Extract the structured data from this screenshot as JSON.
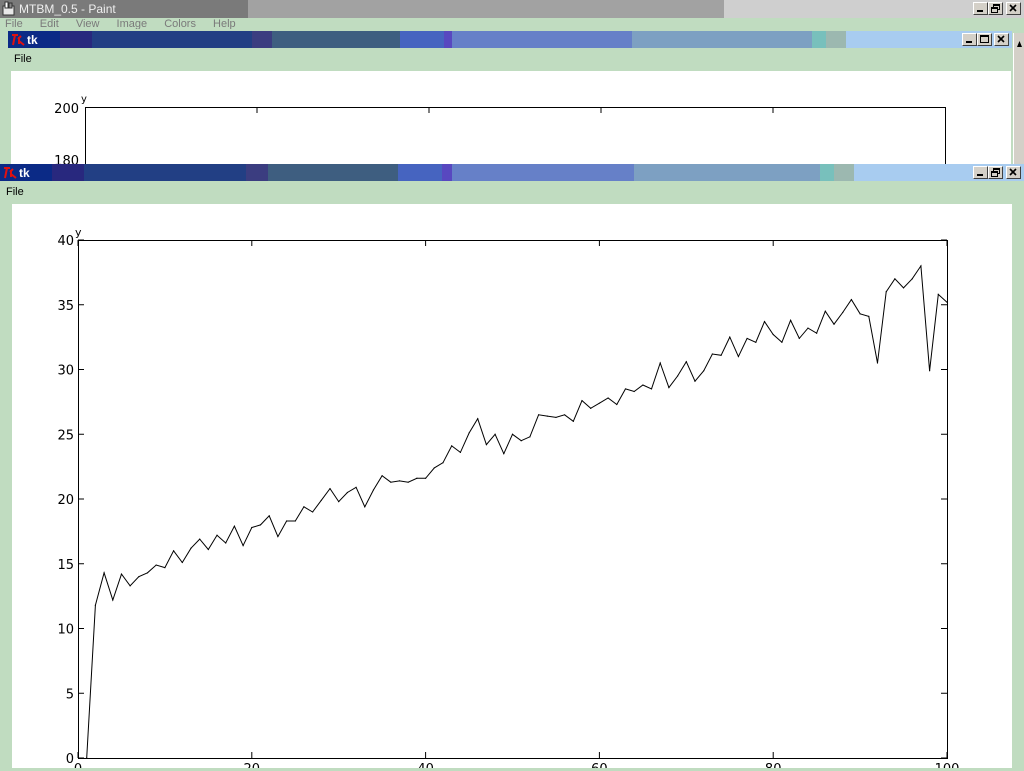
{
  "paint_window": {
    "title": "MTBM_0.5 - Paint",
    "menu": [
      "File",
      "Edit",
      "View",
      "Image",
      "Colors",
      "Help"
    ]
  },
  "tk_window_1": {
    "title": "tk",
    "menu_file": "File",
    "y_axis_label": "y",
    "y_ticks": [
      "200",
      "180"
    ]
  },
  "tk_window_2": {
    "title": "tk",
    "menu_file": "File"
  },
  "icons": {
    "minimize": "minimize-icon",
    "maximize": "maximize-icon",
    "restore": "restore-icon",
    "close": "close-icon",
    "tk_logo": "tk-feather-icon",
    "paint_logo": "paint-app-icon"
  },
  "chart_data": {
    "type": "line",
    "xlabel": "",
    "ylabel": "y",
    "xlim": [
      0,
      100
    ],
    "ylim": [
      0,
      40
    ],
    "x_ticks": [
      "0",
      "20",
      "40",
      "60",
      "80",
      "100"
    ],
    "y_ticks": [
      "0",
      "5",
      "10",
      "15",
      "20",
      "25",
      "30",
      "35",
      "40"
    ],
    "grid": false,
    "series": [
      {
        "color": "#000000",
        "x": [
          1,
          2,
          3,
          4,
          5,
          6,
          7,
          8,
          9,
          10,
          11,
          12,
          13,
          14,
          15,
          16,
          17,
          18,
          19,
          20,
          21,
          22,
          23,
          24,
          25,
          26,
          27,
          28,
          29,
          30,
          31,
          32,
          33,
          34,
          35,
          36,
          37,
          38,
          39,
          40,
          41,
          42,
          43,
          44,
          45,
          46,
          47,
          48,
          49,
          50,
          51,
          52,
          53,
          54,
          55,
          56,
          57,
          58,
          59,
          60,
          61,
          62,
          63,
          64,
          65,
          66,
          67,
          68,
          69,
          70,
          71,
          72,
          73,
          74,
          75,
          76,
          77,
          78,
          79,
          80,
          81,
          82,
          83,
          84,
          85,
          86,
          87,
          88,
          89,
          90,
          91,
          92,
          93,
          94,
          95,
          96,
          97,
          98,
          99,
          100
        ],
        "values": [
          0,
          11.8,
          14.3,
          12.2,
          14.2,
          13.3,
          14.0,
          14.3,
          14.9,
          14.7,
          16.0,
          15.1,
          16.2,
          16.9,
          16.1,
          17.2,
          16.6,
          17.9,
          16.4,
          17.8,
          18.0,
          18.7,
          17.1,
          18.3,
          18.3,
          19.4,
          19.0,
          19.9,
          20.8,
          19.8,
          20.5,
          20.9,
          19.4,
          20.7,
          21.8,
          21.3,
          21.4,
          21.3,
          21.6,
          21.6,
          22.4,
          22.8,
          24.1,
          23.6,
          25.1,
          26.2,
          24.2,
          25.0,
          23.5,
          25.0,
          24.5,
          24.8,
          26.5,
          26.4,
          26.3,
          26.5,
          26.0,
          27.6,
          27.0,
          27.4,
          27.8,
          27.3,
          28.5,
          28.3,
          28.8,
          28.5,
          30.5,
          28.6,
          29.5,
          30.6,
          29.1,
          29.9,
          31.2,
          31.1,
          32.5,
          31.0,
          32.4,
          32.1,
          33.7,
          32.7,
          32.1,
          33.8,
          32.4,
          33.2,
          32.8,
          34.5,
          33.5,
          34.4,
          35.4,
          34.3,
          34.1,
          30.5,
          36.0,
          37.0,
          36.3,
          37.0,
          38.0,
          29.9,
          35.8,
          35.2
        ]
      }
    ]
  }
}
